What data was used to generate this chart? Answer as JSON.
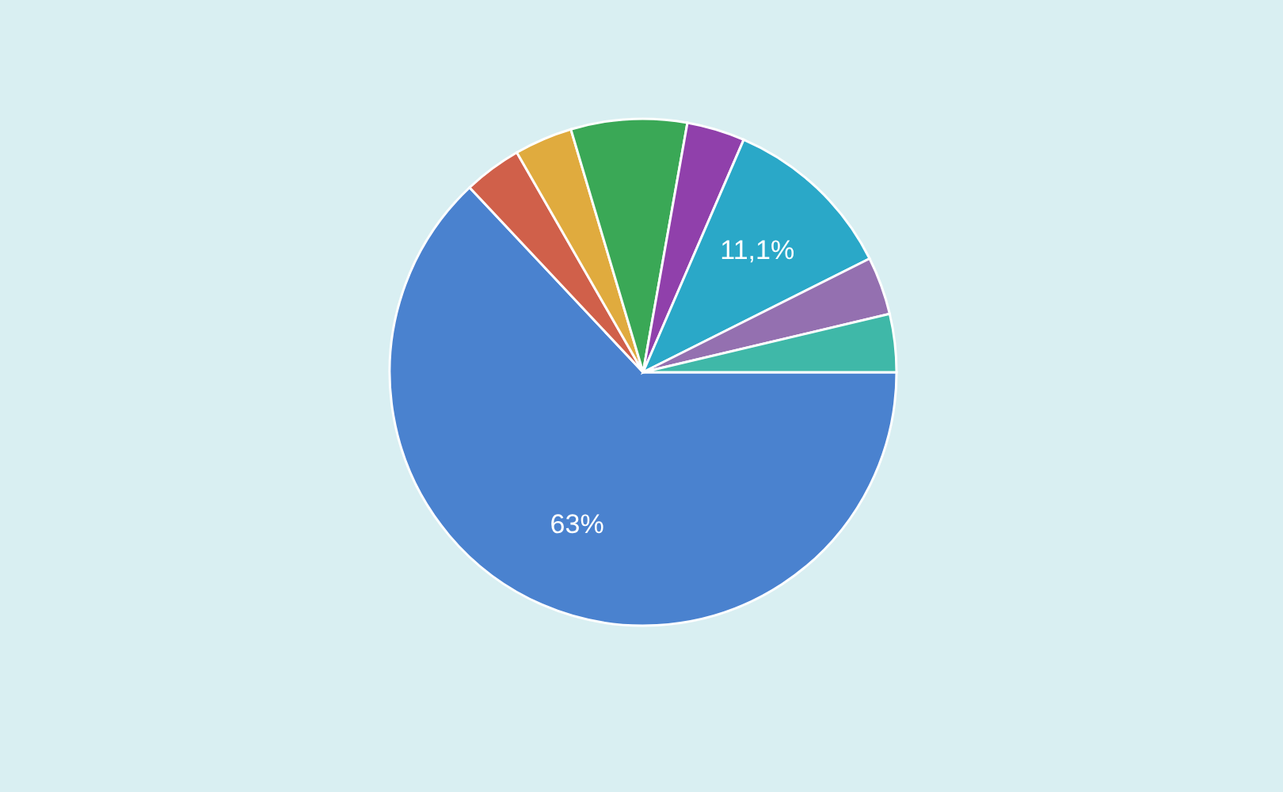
{
  "chart_data": {
    "type": "pie",
    "categories": [
      null,
      null,
      null,
      null,
      null,
      null,
      null,
      null
    ],
    "values": [
      63,
      3.7,
      3.7,
      7.4,
      3.7,
      11.1,
      3.7,
      3.7
    ],
    "colors": [
      "#4a82cf",
      "#d0604a",
      "#e0ab3e",
      "#3aa856",
      "#9040ab",
      "#2aa8c8",
      "#9470b0",
      "#3fb8a8"
    ],
    "value_labels": [
      "63%",
      null,
      null,
      null,
      null,
      "11,1%",
      null,
      null
    ]
  }
}
